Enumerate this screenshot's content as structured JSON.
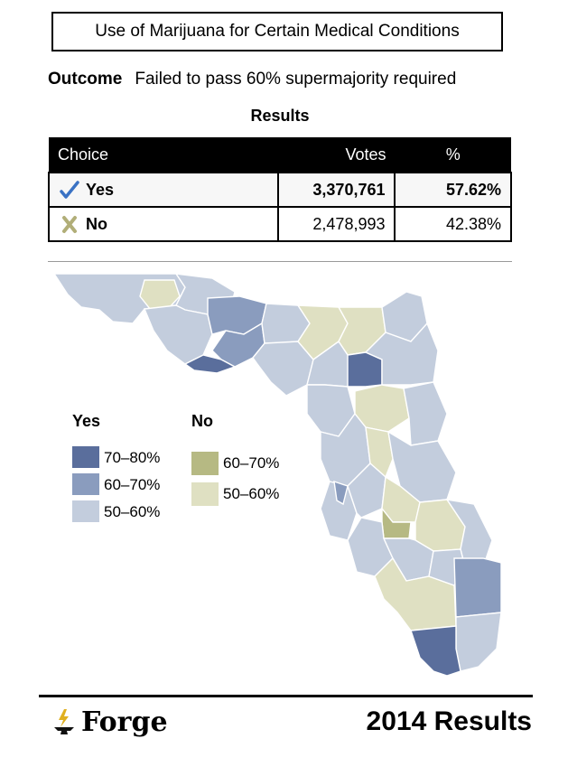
{
  "title": "Use of Marijuana for Certain Medical Conditions",
  "outcome": {
    "label": "Outcome",
    "text": "Failed to pass 60% supermajority required"
  },
  "results_heading": "Results",
  "table": {
    "headers": [
      "Choice",
      "Votes",
      "%"
    ],
    "rows": [
      {
        "icon": "checkmark-icon",
        "choice": "Yes",
        "votes": "3,370,761",
        "percent": "57.62%"
      },
      {
        "icon": "x-mark-icon",
        "choice": "No",
        "votes": "2,478,993",
        "percent": "42.38%"
      }
    ]
  },
  "legend": {
    "yes": {
      "title": "Yes",
      "items": [
        {
          "label": "70–80%",
          "color": "#5a6e9c"
        },
        {
          "label": "60–70%",
          "color": "#8a9cbe"
        },
        {
          "label": "50–60%",
          "color": "#c3cddd"
        }
      ]
    },
    "no": {
      "title": "No",
      "items": [
        {
          "label": "60–70%",
          "color": "#b6b983"
        },
        {
          "label": "50–60%",
          "color": "#dfe0c2"
        }
      ]
    }
  },
  "footer": {
    "brand": "Forge",
    "brand_icon": "anvil-lightning-icon",
    "caption": "2014 Results"
  }
}
